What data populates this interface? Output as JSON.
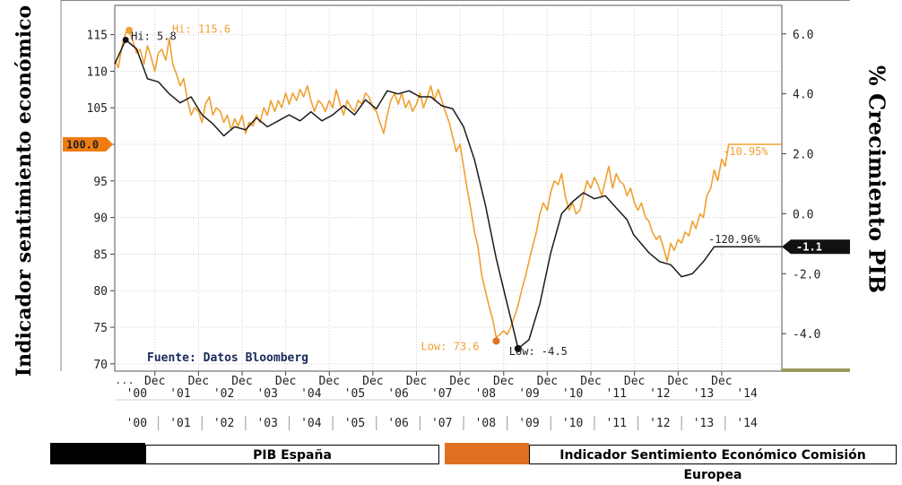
{
  "chart_data": {
    "type": "line",
    "source_note": "Fuente: Datos Bloomberg",
    "ylabel_left": "Indicador sentimiento económico",
    "ylabel_right": "% Crecimiento PIB",
    "left_axis": {
      "ylim": [
        69,
        119
      ],
      "ticks": [
        70,
        75,
        80,
        85,
        90,
        95,
        100,
        105,
        110,
        115
      ]
    },
    "right_axis": {
      "ylim": [
        -5.25,
        6.95
      ],
      "ticks": [
        "6.0",
        "4.0",
        "2.0",
        "0.0",
        "-2.0",
        "-4.0"
      ],
      "tick_values": [
        6.0,
        4.0,
        2.0,
        0.0,
        -2.0,
        -4.0
      ]
    },
    "x_axis": {
      "xlim": [
        2000.0,
        2015.3
      ],
      "dec_label": "Dec",
      "dec_positions": [
        2000.92,
        2001.92,
        2002.92,
        2003.92,
        2004.92,
        2005.92,
        2006.92,
        2007.92,
        2008.92,
        2009.92,
        2010.92,
        2011.92,
        2012.92,
        2013.92
      ],
      "year_row1": [
        "'00",
        "'01",
        "'02",
        "'03",
        "'04",
        "'05",
        "'06",
        "'07",
        "'08",
        "'09",
        "'10",
        "'11",
        "'12",
        "'13",
        "'14"
      ],
      "year_row1_positions": [
        2000.5,
        2001.5,
        2002.5,
        2003.5,
        2004.5,
        2005.5,
        2006.5,
        2007.5,
        2008.5,
        2009.5,
        2010.5,
        2011.5,
        2012.5,
        2013.5,
        2014.5
      ],
      "year_row2": [
        "'00",
        "'01",
        "'02",
        "'03",
        "'04",
        "'05",
        "'06",
        "'07",
        "'08",
        "'09",
        "'10",
        "'11",
        "'12",
        "'13",
        "'14"
      ],
      "ellipsis": "..."
    },
    "series": [
      {
        "name": "Indicador Sentimiento Económico Comisión Europea",
        "axis": "left",
        "color": "#f0a030",
        "points": [
          [
            2000.0,
            111.5
          ],
          [
            2000.08,
            110.5
          ],
          [
            2000.17,
            113.5
          ],
          [
            2000.25,
            115.2
          ],
          [
            2000.33,
            115.6
          ],
          [
            2000.42,
            114.0
          ],
          [
            2000.5,
            112.5
          ],
          [
            2000.58,
            113.0
          ],
          [
            2000.67,
            111.0
          ],
          [
            2000.75,
            113.5
          ],
          [
            2000.83,
            112.0
          ],
          [
            2000.92,
            110.0
          ],
          [
            2001.0,
            112.5
          ],
          [
            2001.08,
            113.0
          ],
          [
            2001.17,
            111.5
          ],
          [
            2001.25,
            114.5
          ],
          [
            2001.33,
            111.0
          ],
          [
            2001.42,
            109.5
          ],
          [
            2001.5,
            108.0
          ],
          [
            2001.58,
            109.0
          ],
          [
            2001.67,
            106.0
          ],
          [
            2001.75,
            104.0
          ],
          [
            2001.83,
            105.0
          ],
          [
            2001.92,
            104.5
          ],
          [
            2002.0,
            103.0
          ],
          [
            2002.08,
            105.5
          ],
          [
            2002.17,
            106.5
          ],
          [
            2002.25,
            104.0
          ],
          [
            2002.33,
            105.0
          ],
          [
            2002.42,
            104.5
          ],
          [
            2002.5,
            103.0
          ],
          [
            2002.58,
            104.0
          ],
          [
            2002.67,
            102.0
          ],
          [
            2002.75,
            103.5
          ],
          [
            2002.83,
            102.5
          ],
          [
            2002.92,
            104.0
          ],
          [
            2003.0,
            101.5
          ],
          [
            2003.08,
            103.0
          ],
          [
            2003.17,
            102.5
          ],
          [
            2003.25,
            104.0
          ],
          [
            2003.33,
            103.0
          ],
          [
            2003.42,
            105.0
          ],
          [
            2003.5,
            104.0
          ],
          [
            2003.58,
            106.0
          ],
          [
            2003.67,
            104.5
          ],
          [
            2003.75,
            106.0
          ],
          [
            2003.83,
            105.0
          ],
          [
            2003.92,
            107.0
          ],
          [
            2004.0,
            105.5
          ],
          [
            2004.08,
            107.0
          ],
          [
            2004.17,
            106.0
          ],
          [
            2004.25,
            107.5
          ],
          [
            2004.33,
            106.5
          ],
          [
            2004.42,
            108.0
          ],
          [
            2004.5,
            106.0
          ],
          [
            2004.58,
            104.5
          ],
          [
            2004.67,
            106.0
          ],
          [
            2004.75,
            105.5
          ],
          [
            2004.83,
            104.5
          ],
          [
            2004.92,
            106.0
          ],
          [
            2005.0,
            105.0
          ],
          [
            2005.08,
            107.5
          ],
          [
            2005.17,
            105.5
          ],
          [
            2005.25,
            104.0
          ],
          [
            2005.33,
            106.0
          ],
          [
            2005.42,
            105.0
          ],
          [
            2005.5,
            104.5
          ],
          [
            2005.58,
            106.0
          ],
          [
            2005.67,
            105.5
          ],
          [
            2005.75,
            107.0
          ],
          [
            2005.83,
            106.5
          ],
          [
            2005.92,
            105.0
          ],
          [
            2006.0,
            104.5
          ],
          [
            2006.08,
            103.0
          ],
          [
            2006.17,
            101.5
          ],
          [
            2006.25,
            104.0
          ],
          [
            2006.33,
            106.0
          ],
          [
            2006.42,
            107.0
          ],
          [
            2006.5,
            105.5
          ],
          [
            2006.58,
            107.0
          ],
          [
            2006.67,
            105.0
          ],
          [
            2006.75,
            106.0
          ],
          [
            2006.83,
            104.5
          ],
          [
            2006.92,
            105.5
          ],
          [
            2007.0,
            107.0
          ],
          [
            2007.08,
            105.0
          ],
          [
            2007.17,
            106.5
          ],
          [
            2007.25,
            108.0
          ],
          [
            2007.33,
            106.0
          ],
          [
            2007.42,
            107.5
          ],
          [
            2007.5,
            106.0
          ],
          [
            2007.58,
            104.5
          ],
          [
            2007.67,
            103.0
          ],
          [
            2007.75,
            101.0
          ],
          [
            2007.83,
            99.0
          ],
          [
            2007.92,
            100.0
          ],
          [
            2008.0,
            97.0
          ],
          [
            2008.08,
            94.0
          ],
          [
            2008.17,
            91.0
          ],
          [
            2008.25,
            88.0
          ],
          [
            2008.33,
            86.0
          ],
          [
            2008.42,
            82.0
          ],
          [
            2008.5,
            80.0
          ],
          [
            2008.58,
            78.0
          ],
          [
            2008.67,
            76.0
          ],
          [
            2008.75,
            73.6
          ],
          [
            2008.83,
            74.0
          ],
          [
            2008.92,
            74.5
          ],
          [
            2009.0,
            74.0
          ],
          [
            2009.08,
            75.0
          ],
          [
            2009.17,
            76.5
          ],
          [
            2009.25,
            78.0
          ],
          [
            2009.33,
            80.0
          ],
          [
            2009.42,
            82.0
          ],
          [
            2009.5,
            84.0
          ],
          [
            2009.58,
            86.0
          ],
          [
            2009.67,
            88.0
          ],
          [
            2009.75,
            90.5
          ],
          [
            2009.83,
            92.0
          ],
          [
            2009.92,
            91.0
          ],
          [
            2010.0,
            93.5
          ],
          [
            2010.08,
            95.0
          ],
          [
            2010.17,
            94.5
          ],
          [
            2010.25,
            96.0
          ],
          [
            2010.33,
            93.0
          ],
          [
            2010.42,
            91.0
          ],
          [
            2010.5,
            92.0
          ],
          [
            2010.58,
            90.5
          ],
          [
            2010.67,
            91.0
          ],
          [
            2010.75,
            93.0
          ],
          [
            2010.83,
            95.0
          ],
          [
            2010.92,
            94.0
          ],
          [
            2011.0,
            95.5
          ],
          [
            2011.08,
            94.5
          ],
          [
            2011.17,
            93.0
          ],
          [
            2011.25,
            95.0
          ],
          [
            2011.33,
            97.0
          ],
          [
            2011.42,
            94.0
          ],
          [
            2011.5,
            96.0
          ],
          [
            2011.58,
            95.0
          ],
          [
            2011.67,
            94.5
          ],
          [
            2011.75,
            93.0
          ],
          [
            2011.83,
            94.0
          ],
          [
            2011.92,
            92.0
          ],
          [
            2012.0,
            91.0
          ],
          [
            2012.08,
            92.0
          ],
          [
            2012.17,
            90.0
          ],
          [
            2012.25,
            89.5
          ],
          [
            2012.33,
            88.0
          ],
          [
            2012.42,
            87.0
          ],
          [
            2012.5,
            87.5
          ],
          [
            2012.58,
            86.0
          ],
          [
            2012.67,
            84.0
          ],
          [
            2012.75,
            86.5
          ],
          [
            2012.83,
            85.5
          ],
          [
            2012.92,
            87.0
          ],
          [
            2013.0,
            86.5
          ],
          [
            2013.08,
            88.0
          ],
          [
            2013.17,
            87.5
          ],
          [
            2013.25,
            89.5
          ],
          [
            2013.33,
            88.5
          ],
          [
            2013.42,
            90.5
          ],
          [
            2013.5,
            90.0
          ],
          [
            2013.58,
            93.0
          ],
          [
            2013.67,
            94.0
          ],
          [
            2013.75,
            96.5
          ],
          [
            2013.83,
            95.0
          ],
          [
            2013.92,
            98.0
          ],
          [
            2014.0,
            97.0
          ],
          [
            2014.08,
            100.0
          ],
          [
            2015.3,
            100.0
          ]
        ]
      },
      {
        "name": "PIB España",
        "axis": "right",
        "color": "#1a1a1a",
        "points": [
          [
            2000.0,
            5.0
          ],
          [
            2000.25,
            5.8
          ],
          [
            2000.5,
            5.5
          ],
          [
            2000.75,
            4.5
          ],
          [
            2001.0,
            4.4
          ],
          [
            2001.25,
            4.0
          ],
          [
            2001.5,
            3.7
          ],
          [
            2001.75,
            3.9
          ],
          [
            2002.0,
            3.3
          ],
          [
            2002.25,
            3.0
          ],
          [
            2002.5,
            2.6
          ],
          [
            2002.75,
            2.9
          ],
          [
            2003.0,
            2.8
          ],
          [
            2003.25,
            3.2
          ],
          [
            2003.5,
            2.9
          ],
          [
            2003.75,
            3.1
          ],
          [
            2004.0,
            3.3
          ],
          [
            2004.25,
            3.1
          ],
          [
            2004.5,
            3.4
          ],
          [
            2004.75,
            3.1
          ],
          [
            2005.0,
            3.3
          ],
          [
            2005.25,
            3.6
          ],
          [
            2005.5,
            3.3
          ],
          [
            2005.75,
            3.8
          ],
          [
            2006.0,
            3.5
          ],
          [
            2006.25,
            4.1
          ],
          [
            2006.5,
            4.0
          ],
          [
            2006.75,
            4.1
          ],
          [
            2007.0,
            3.9
          ],
          [
            2007.25,
            3.9
          ],
          [
            2007.5,
            3.6
          ],
          [
            2007.75,
            3.5
          ],
          [
            2008.0,
            2.9
          ],
          [
            2008.25,
            1.8
          ],
          [
            2008.5,
            0.3
          ],
          [
            2008.75,
            -1.5
          ],
          [
            2009.0,
            -3.0
          ],
          [
            2009.17,
            -4.0
          ],
          [
            2009.25,
            -4.5
          ],
          [
            2009.5,
            -4.2
          ],
          [
            2009.75,
            -3.0
          ],
          [
            2010.0,
            -1.3
          ],
          [
            2010.25,
            0.0
          ],
          [
            2010.5,
            0.4
          ],
          [
            2010.75,
            0.7
          ],
          [
            2011.0,
            0.5
          ],
          [
            2011.25,
            0.6
          ],
          [
            2011.5,
            0.2
          ],
          [
            2011.75,
            -0.2
          ],
          [
            2011.9,
            -0.7
          ],
          [
            2012.25,
            -1.3
          ],
          [
            2012.5,
            -1.6
          ],
          [
            2012.75,
            -1.7
          ],
          [
            2013.0,
            -2.1
          ],
          [
            2013.25,
            -2.0
          ],
          [
            2013.5,
            -1.6
          ],
          [
            2013.75,
            -1.1
          ],
          [
            2015.3,
            -1.1
          ]
        ]
      }
    ],
    "annotations": {
      "hi_gdp": {
        "text": "Hi: 5.8",
        "x": 2000.25,
        "value": 5.8
      },
      "hi_sent": {
        "text": "Hi: 115.6",
        "x": 2000.33,
        "value": 115.6
      },
      "low_sent": {
        "text": "Low: 73.6",
        "x": 2008.75,
        "value": 73.6
      },
      "low_gdp": {
        "text": "Low: -4.5",
        "x": 2009.25,
        "value": -4.5
      },
      "sent_last_pct": "-10.95%",
      "gdp_last_pct": "-120.96%",
      "sent_last_tag": "100.0",
      "gdp_last_tag": "-1.1"
    },
    "legend": [
      {
        "label": "PIB España",
        "color": "#000000"
      },
      {
        "label": "Indicador Sentimiento Económico Comisión Europea",
        "color": "#e07020"
      }
    ],
    "grid": true
  }
}
